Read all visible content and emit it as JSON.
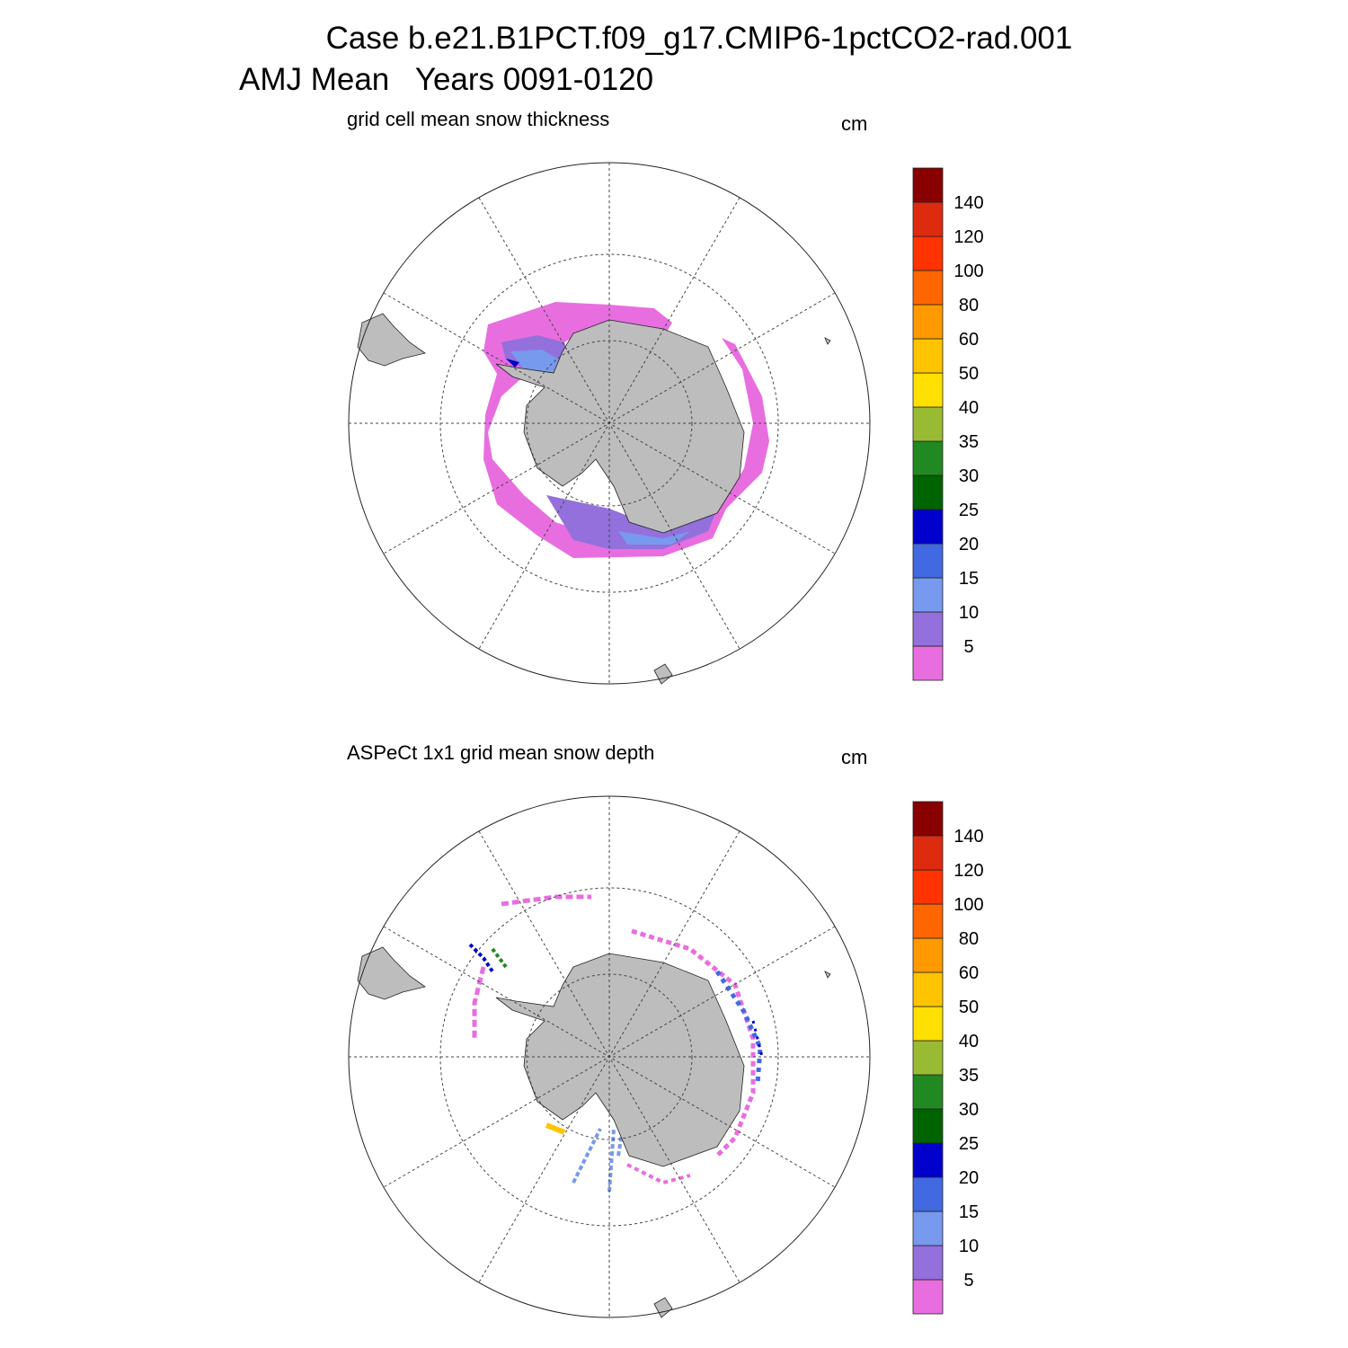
{
  "header": {
    "title_line1": "Case b.e21.B1PCT.f09_g17.CMIP6-1pctCO2-rad.001",
    "title_line2": "AMJ Mean   Years 0091-0120"
  },
  "panels": [
    {
      "title": "grid cell mean snow thickness",
      "units": "cm",
      "colorbar": {
        "levels": [
          5,
          10,
          15,
          20,
          25,
          30,
          35,
          40,
          50,
          60,
          80,
          100,
          120,
          140
        ],
        "colors": [
          "#e86ee0",
          "#9370db",
          "#7799ee",
          "#4169e1",
          "#0000cc",
          "#006400",
          "#228822",
          "#99bb33",
          "#ffe000",
          "#ffc400",
          "#ff9900",
          "#ff6600",
          "#ff3300",
          "#dd2b10",
          "#880000"
        ]
      }
    },
    {
      "title": "ASPeCt 1x1 grid mean snow depth",
      "units": "cm",
      "colorbar": {
        "levels": [
          5,
          10,
          15,
          20,
          25,
          30,
          35,
          40,
          50,
          60,
          80,
          100,
          120,
          140
        ],
        "colors": [
          "#e86ee0",
          "#9370db",
          "#7799ee",
          "#4169e1",
          "#0000cc",
          "#006400",
          "#228822",
          "#99bb33",
          "#ffe000",
          "#ffc400",
          "#ff9900",
          "#ff6600",
          "#ff3300",
          "#dd2b10",
          "#880000"
        ]
      }
    }
  ]
}
